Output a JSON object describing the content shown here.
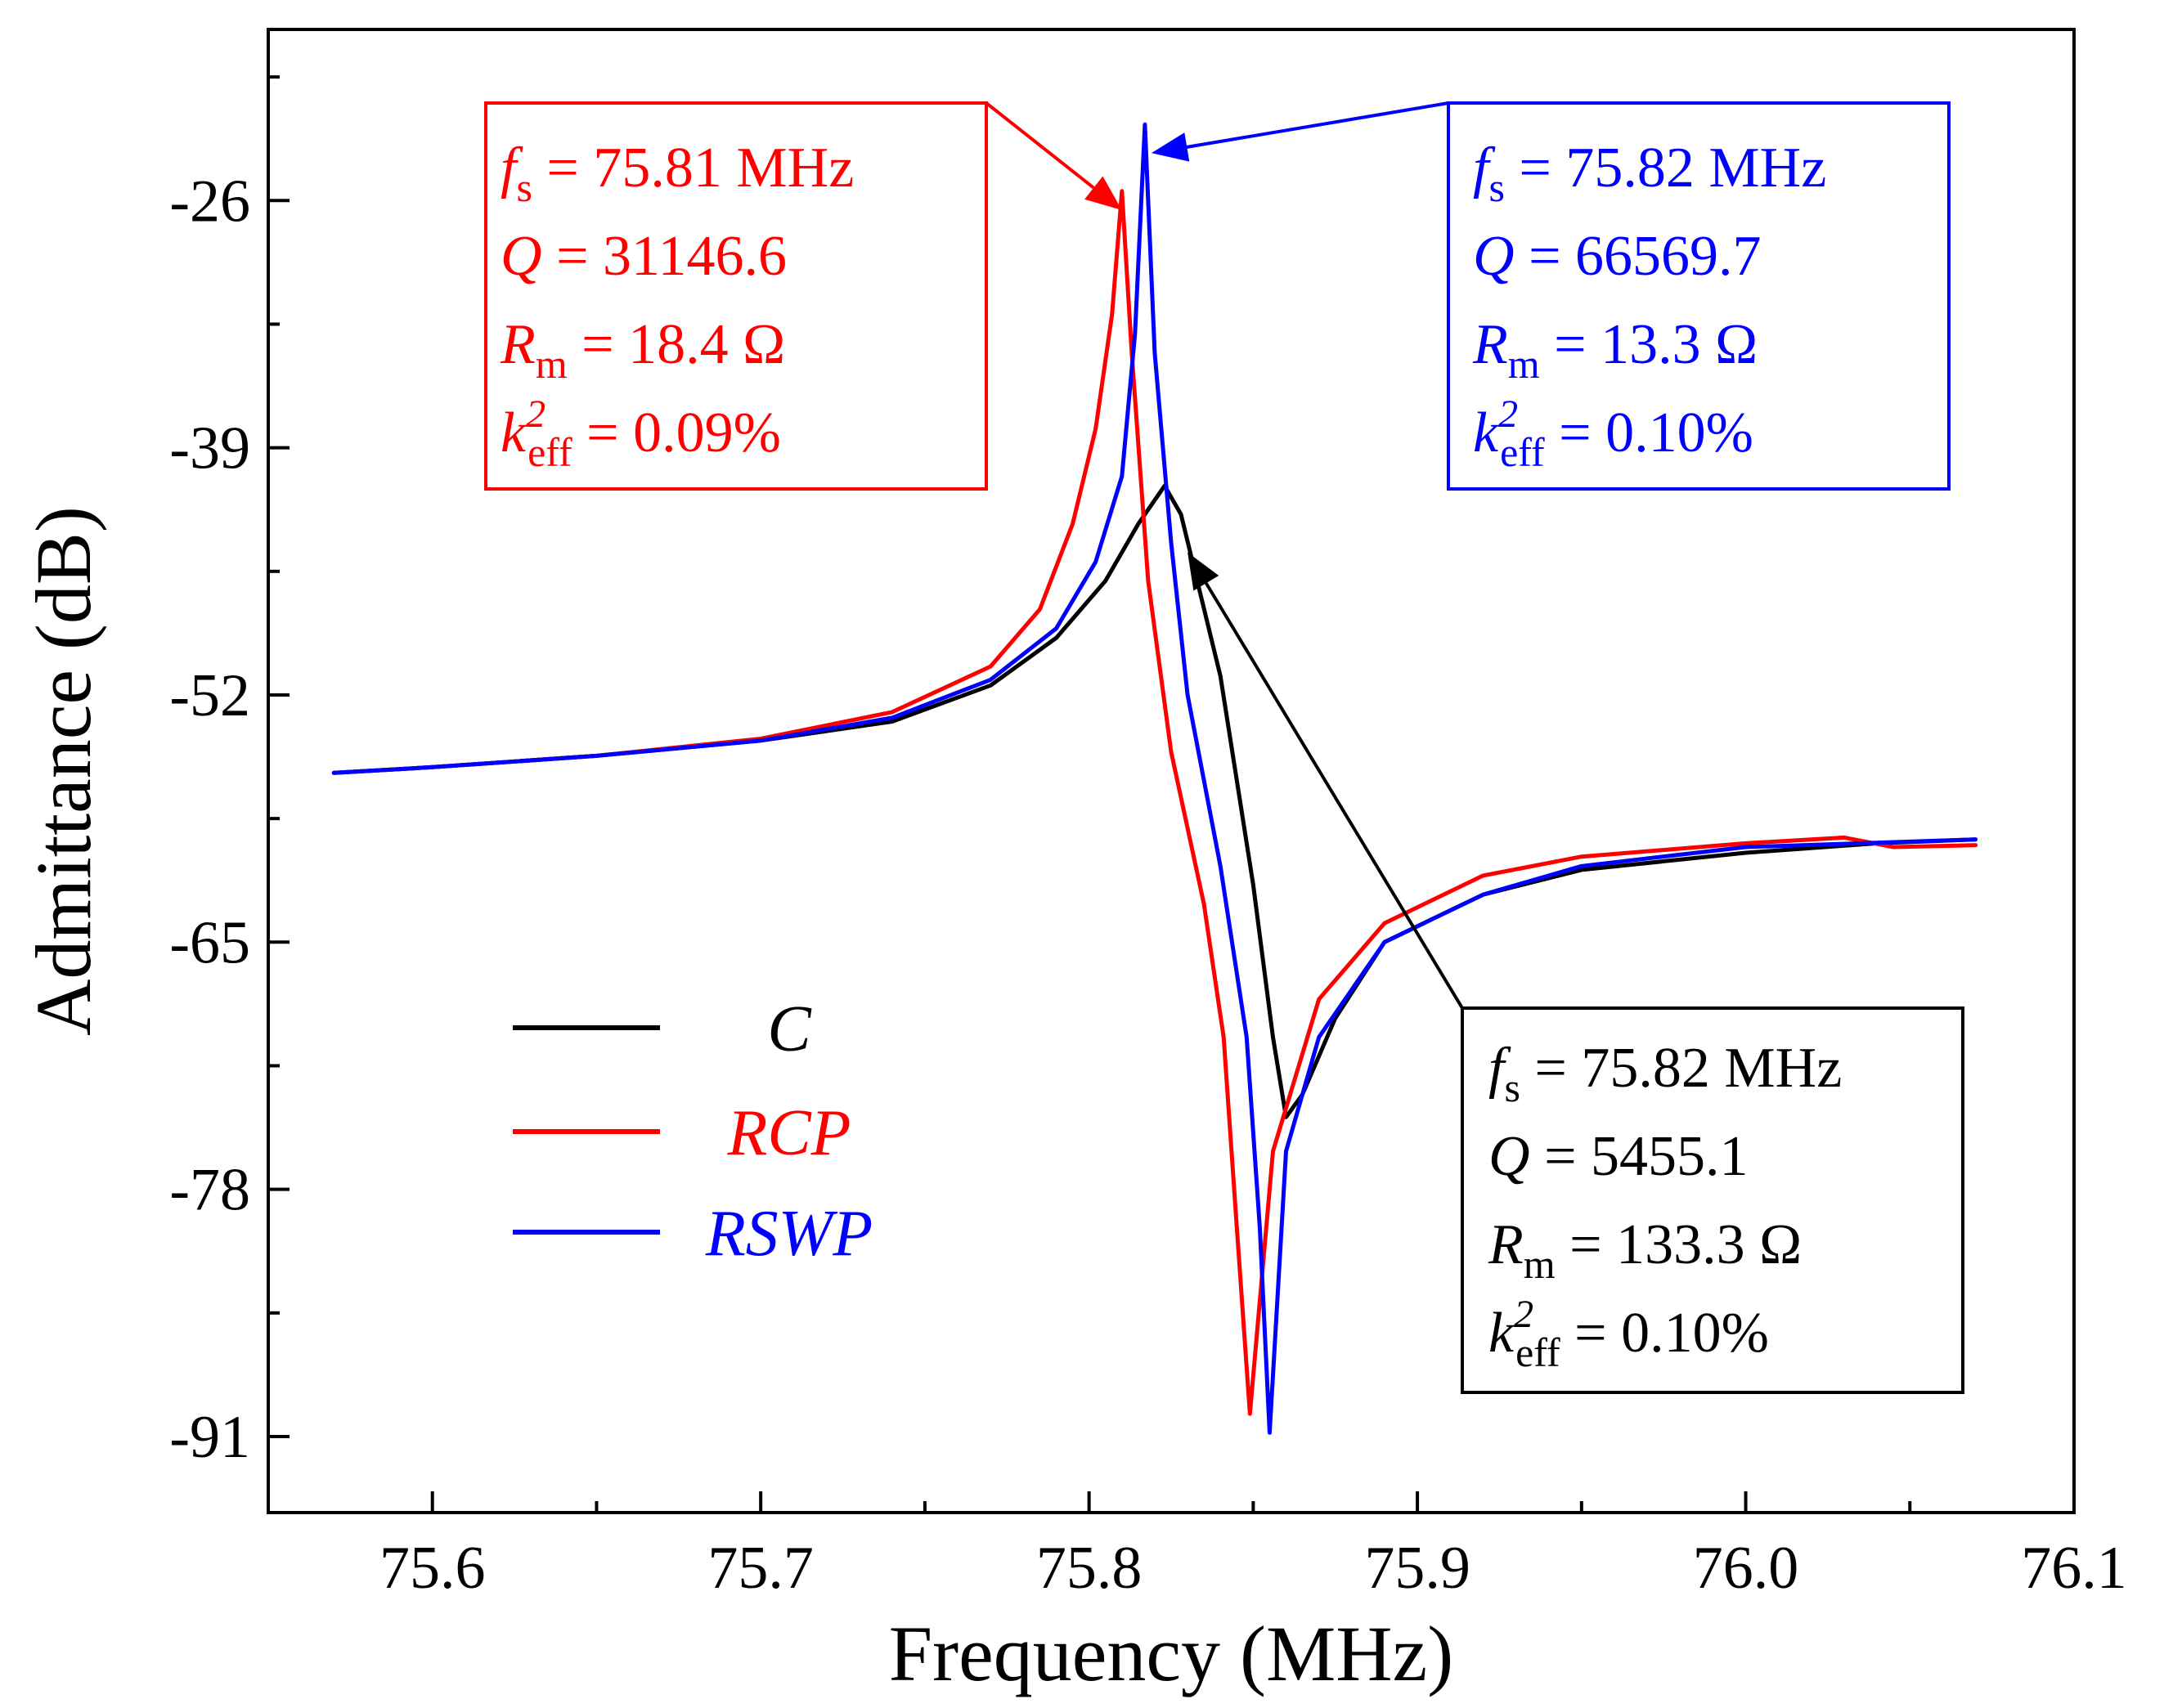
{
  "chart_data": {
    "type": "line",
    "xlabel": "Frequency (MHz)",
    "ylabel": "Admittance (dB)",
    "xlim": [
      75.55,
      76.1
    ],
    "ylim": [
      -95,
      -17
    ],
    "xticks": [
      75.6,
      75.7,
      75.8,
      75.9,
      76.0,
      76.1
    ],
    "xtick_labels": [
      "75.6",
      "75.7",
      "75.8",
      "75.9",
      "76.0",
      "76.1"
    ],
    "yticks": [
      -26,
      -39,
      -52,
      -65,
      -78,
      -91
    ],
    "ytick_labels": [
      "-26",
      "-39",
      "-52",
      "-65",
      "-78",
      "-91"
    ],
    "grid": false,
    "legend_position": "center-left",
    "series": [
      {
        "name": "C",
        "color": "#000000",
        "x": [
          75.57,
          75.6,
          75.65,
          75.7,
          75.74,
          75.77,
          75.79,
          75.805,
          75.815,
          75.823,
          75.828,
          75.84,
          75.85,
          75.856,
          75.86,
          75.865,
          75.875,
          75.89,
          75.92,
          75.95,
          76.0,
          76.04,
          76.07
        ],
        "y": [
          -56.1,
          -55.8,
          -55.2,
          -54.4,
          -53.4,
          -51.5,
          -49.0,
          -46.0,
          -43.0,
          -41.0,
          -42.5,
          -51.0,
          -62.0,
          -70.0,
          -74.2,
          -73.0,
          -69.0,
          -65.0,
          -62.5,
          -61.2,
          -60.3,
          -59.8,
          -59.6
        ]
      },
      {
        "name": "RCP",
        "color": "#ff0000",
        "x": [
          75.57,
          75.6,
          75.65,
          75.7,
          75.74,
          75.77,
          75.785,
          75.795,
          75.802,
          75.807,
          75.81,
          75.813,
          75.818,
          75.825,
          75.835,
          75.841,
          75.845,
          75.849,
          75.856,
          75.87,
          75.89,
          75.92,
          75.95,
          76.0,
          76.03,
          76.045,
          76.07
        ],
        "y": [
          -56.1,
          -55.8,
          -55.2,
          -54.3,
          -52.9,
          -50.5,
          -47.5,
          -43.0,
          -38.0,
          -32.0,
          -25.5,
          -34.0,
          -46.0,
          -55.0,
          -63.0,
          -70.0,
          -80.0,
          -89.8,
          -76.0,
          -68.0,
          -64.0,
          -61.5,
          -60.5,
          -59.8,
          -59.5,
          -60.0,
          -59.9
        ]
      },
      {
        "name": "RSWP",
        "color": "#0000ff",
        "x": [
          75.57,
          75.6,
          75.65,
          75.7,
          75.74,
          75.77,
          75.79,
          75.802,
          75.81,
          75.814,
          75.817,
          75.82,
          75.825,
          75.83,
          75.84,
          75.848,
          75.852,
          75.855,
          75.86,
          75.87,
          75.89,
          75.92,
          75.95,
          76.0,
          76.07
        ],
        "y": [
          -56.1,
          -55.8,
          -55.2,
          -54.4,
          -53.2,
          -51.2,
          -48.5,
          -45.0,
          -40.5,
          -33.0,
          -22.0,
          -34.0,
          -44.0,
          -52.0,
          -61.0,
          -70.0,
          -80.0,
          -90.8,
          -76.0,
          -70.0,
          -65.0,
          -62.5,
          -61.0,
          -60.0,
          -59.6
        ]
      }
    ],
    "annotations": [
      {
        "color": "#ff0000",
        "fs": "75.81 MHz",
        "q": "31146.6",
        "rm": "18.4 Ω",
        "keff": "0.09%",
        "target_x": 75.81,
        "target_y": -26.5
      },
      {
        "color": "#0000ff",
        "fs": "75.82 MHz",
        "q": "66569.7",
        "rm": "13.3 Ω",
        "keff": "0.10%",
        "target_x": 75.819,
        "target_y": -23.5
      },
      {
        "color": "#000000",
        "fs": "75.82 MHz",
        "q": "5455.1",
        "rm": "133.3 Ω",
        "keff": "0.10%",
        "target_x": 75.83,
        "target_y": -44.5
      }
    ],
    "annotation_labels": {
      "f_symbol": "f",
      "f_sub": "s",
      "q_symbol": "Q",
      "r_symbol": "R",
      "r_sub": "m",
      "k_symbol": "k",
      "k_sup": "2",
      "k_sub": "eff",
      "equals": " = "
    }
  }
}
